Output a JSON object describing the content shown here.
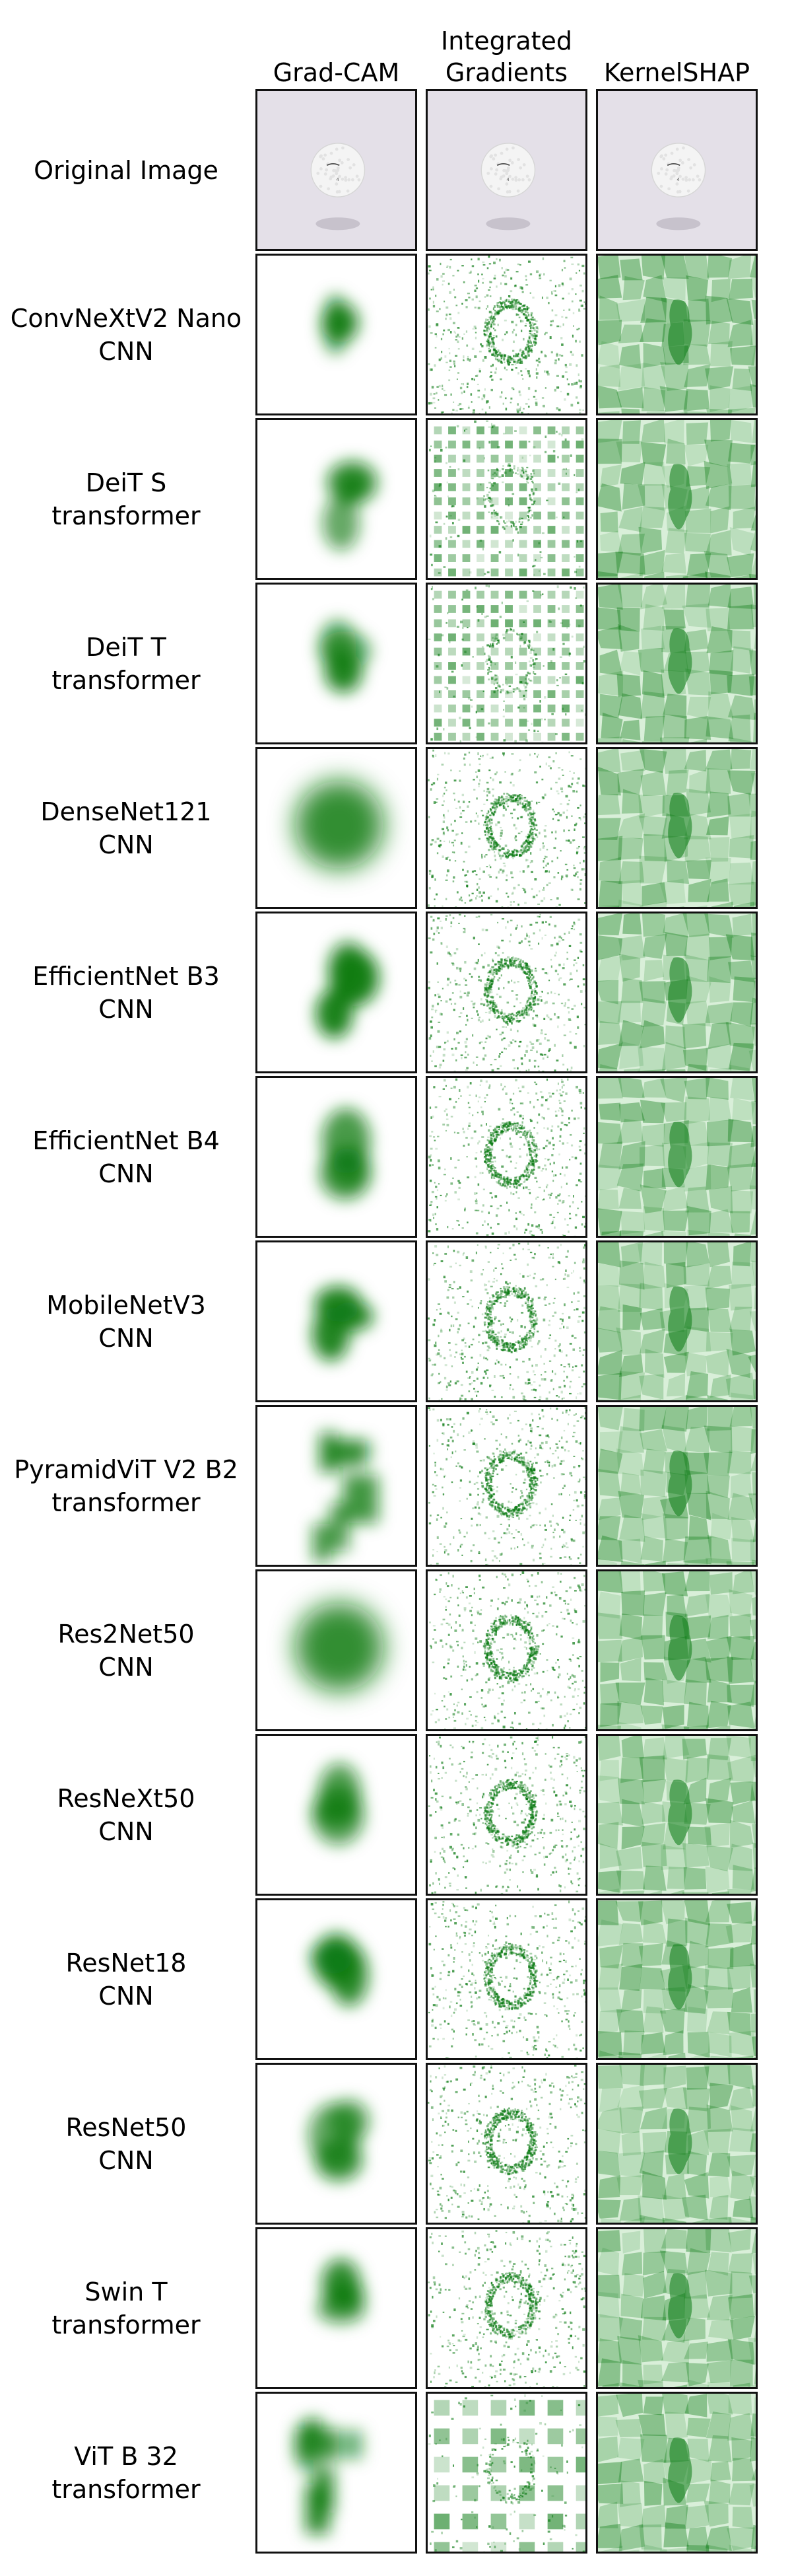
{
  "columns": [
    {
      "label": "Grad-CAM",
      "type": "gradcam"
    },
    {
      "label": "Integrated\nGradients",
      "type": "ig"
    },
    {
      "label": "KernelSHAP",
      "type": "shap"
    }
  ],
  "original_row": {
    "label": "Original Image"
  },
  "rows": [
    {
      "name": "ConvNeXtV2 Nano",
      "family": "CNN"
    },
    {
      "name": "DeiT S",
      "family": "transformer"
    },
    {
      "name": "DeiT T",
      "family": "transformer"
    },
    {
      "name": "DenseNet121",
      "family": "CNN"
    },
    {
      "name": "EfficientNet B3",
      "family": "CNN"
    },
    {
      "name": "EfficientNet B4",
      "family": "CNN"
    },
    {
      "name": "MobileNetV3",
      "family": "CNN"
    },
    {
      "name": "PyramidViT V2 B2",
      "family": "transformer"
    },
    {
      "name": "Res2Net50",
      "family": "CNN"
    },
    {
      "name": "ResNeXt50",
      "family": "CNN"
    },
    {
      "name": "ResNet18",
      "family": "CNN"
    },
    {
      "name": "ResNet50",
      "family": "CNN"
    },
    {
      "name": "Swin T",
      "family": "transformer"
    },
    {
      "name": "ViT B 32",
      "family": "transformer"
    }
  ],
  "colors": {
    "attribution": "#0a7a12",
    "original_bg": "#e4e0e8",
    "ball": "#f4f4f4"
  }
}
